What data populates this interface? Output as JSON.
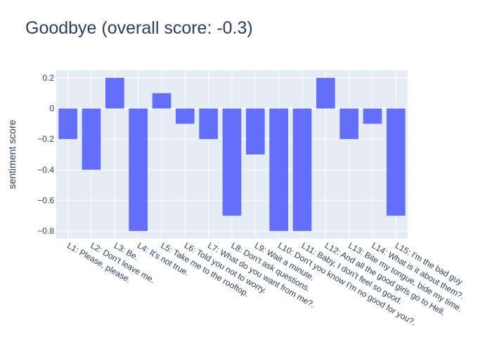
{
  "chart_data": {
    "type": "bar",
    "title": "Goodbye (overall score: -0.3)",
    "xlabel": "",
    "ylabel": "sentiment score",
    "ylim": [
      -0.85,
      0.25
    ],
    "yticks": [
      0.2,
      0,
      -0.2,
      -0.4,
      -0.6,
      -0.8
    ],
    "ytick_labels": [
      "0.2",
      "0",
      "−0.2",
      "−0.4",
      "−0.6",
      "−0.8"
    ],
    "grid": true,
    "categories": [
      "L1: Please, please.",
      "L2: Don't leave me.",
      "L3: Be.",
      "L4: It's not true.",
      "L5: Take me to the rooftop.",
      "L6: Told you not to worry.",
      "L7: What do you want from me?.",
      "L8: Don't ask questions.",
      "L9: Wait a minute.",
      "L10: Don't you know I'm no good for you?.",
      "L11: Baby, I don't feel so good.",
      "L12: And all the good girls go to Hell.",
      "L13: Bite my tongue, bide my time.",
      "L14: What is it about them?.",
      "L15: I'm the bad guy"
    ],
    "values": [
      -0.2,
      -0.4,
      0.2,
      -0.8,
      0.1,
      -0.1,
      -0.2,
      -0.7,
      -0.3,
      -0.8,
      -0.8,
      0.2,
      -0.2,
      -0.1,
      -0.7
    ],
    "colors": {
      "bar": "#636efa",
      "plot_bg": "#e5ecf6",
      "grid": "#ffffff",
      "text": "#2a3f5f"
    }
  }
}
